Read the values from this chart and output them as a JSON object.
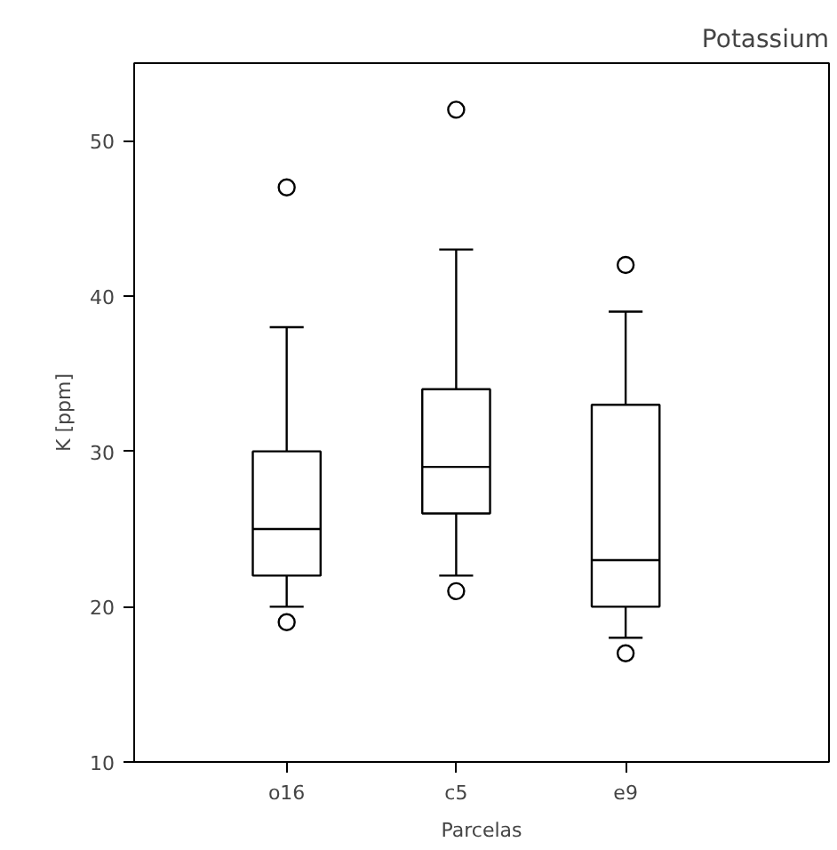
{
  "chart_data": {
    "type": "box",
    "title": "Potassium",
    "xlabel": "Parcelas",
    "ylabel": "K [ppm]",
    "categories": [
      "o16",
      "c5",
      "e9"
    ],
    "boxes": [
      {
        "low": 20,
        "q1": 22,
        "median": 25,
        "q3": 30,
        "high": 38,
        "outliers": [
          47,
          19
        ]
      },
      {
        "low": 22,
        "q1": 26,
        "median": 29,
        "q3": 34,
        "high": 43,
        "outliers": [
          52,
          21
        ]
      },
      {
        "low": 18,
        "q1": 20,
        "median": 23,
        "q3": 33,
        "high": 39,
        "outliers": [
          42,
          17
        ]
      }
    ],
    "color": "#000000",
    "ylim": [
      10,
      55
    ],
    "yticks": [
      10,
      20,
      30,
      40,
      50
    ],
    "grid": false,
    "marker": "circle"
  }
}
